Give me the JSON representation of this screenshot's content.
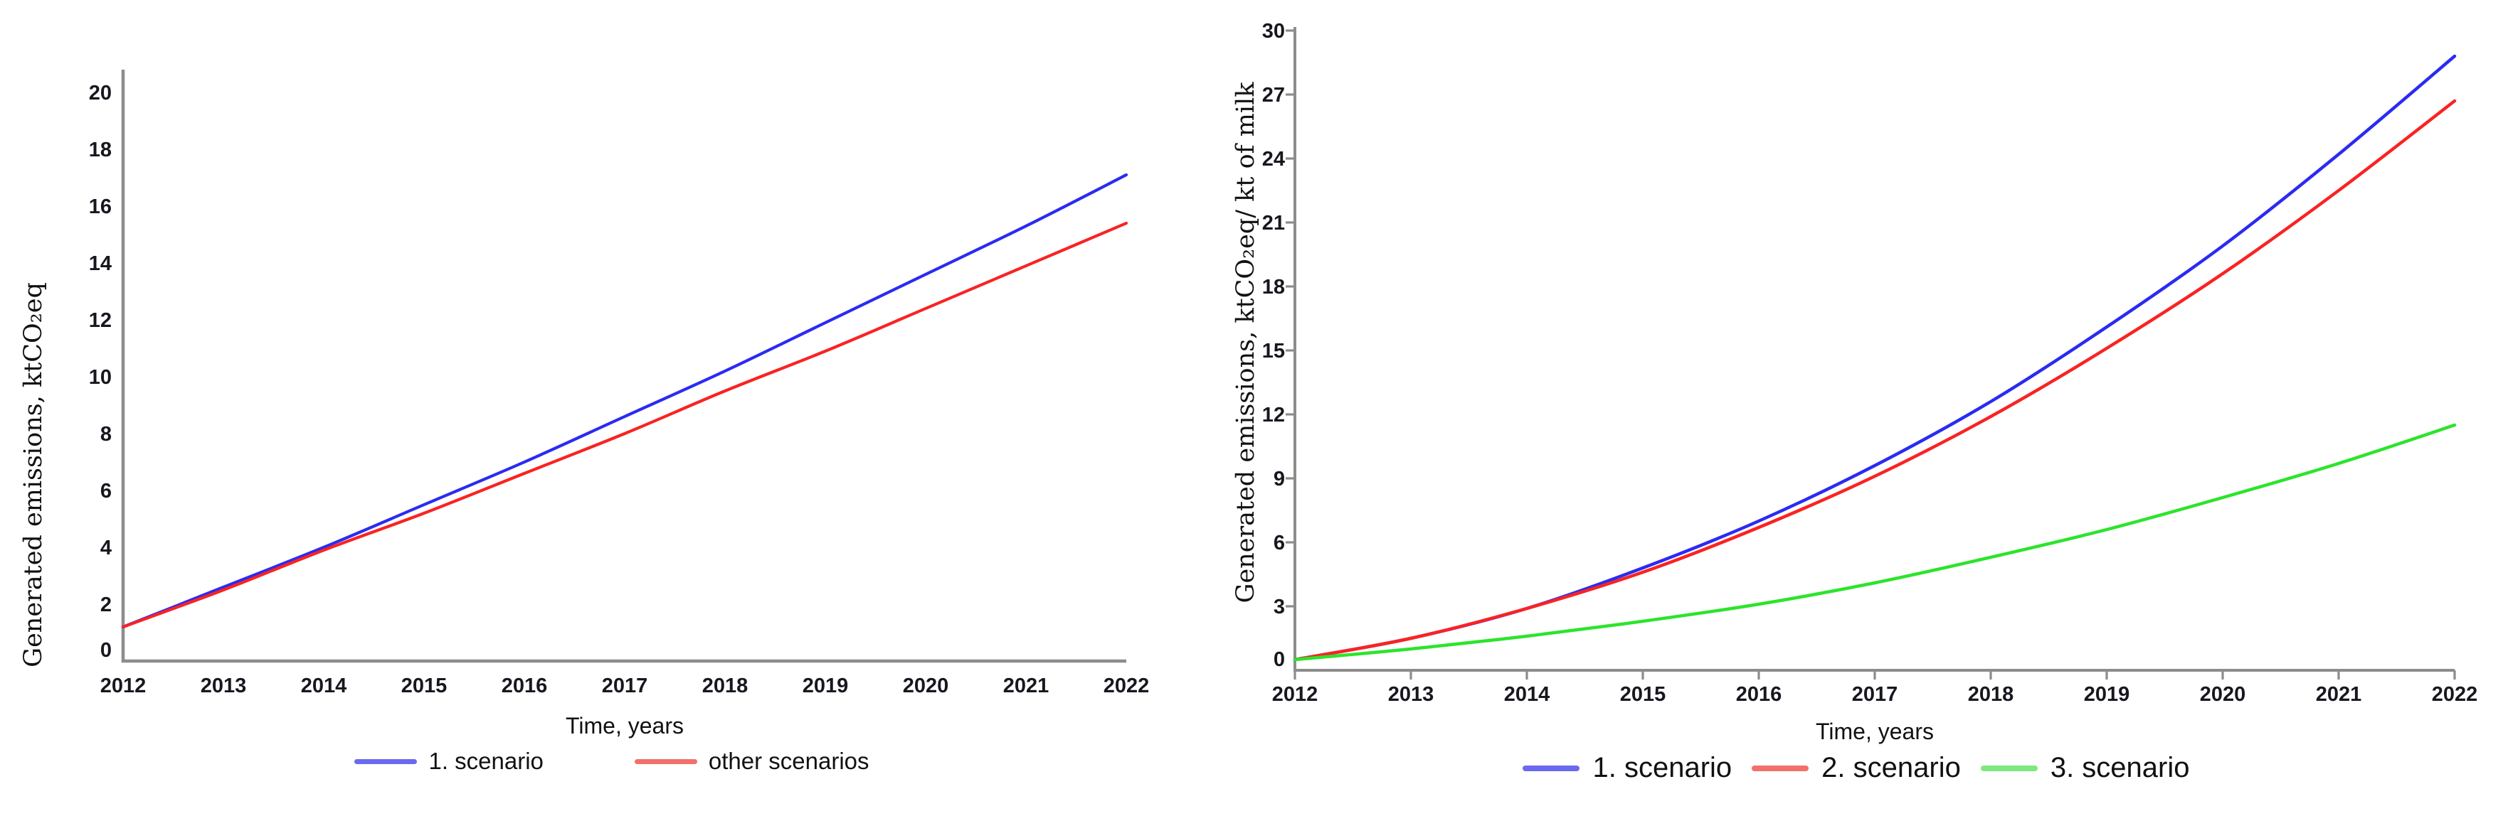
{
  "chart_data": [
    {
      "type": "line",
      "title": "",
      "xlabel": "Time, years",
      "ylabel": "Generated emissions, ktCO₂eq",
      "x": [
        2012,
        2013,
        2014,
        2015,
        2016,
        2017,
        2018,
        2019,
        2020,
        2021,
        2022
      ],
      "xtick_labels": [
        "2012",
        "2013",
        "2014",
        "2015",
        "2016",
        "2017",
        "2018",
        "2019",
        "2020",
        "2021",
        "2022"
      ],
      "xlim": [
        2012,
        2022
      ],
      "ylim": [
        0,
        20
      ],
      "ytick_step": 2,
      "grid": false,
      "legend_position": "bottom-center",
      "axis_color": "#8c8c8c",
      "tick_label_color": "#17171f",
      "series": [
        {
          "name": "1. scenario",
          "color": "#2b2bf2",
          "legend_color": "#6a6af0",
          "values": [
            1.2,
            2.6,
            4.0,
            5.5,
            7.0,
            8.6,
            10.2,
            11.9,
            13.6,
            15.3,
            17.1
          ]
        },
        {
          "name": "other scenarios",
          "color": "#f92323",
          "legend_color": "#f2706a",
          "values": [
            1.2,
            2.5,
            3.9,
            5.2,
            6.6,
            8.0,
            9.5,
            10.9,
            12.4,
            13.9,
            15.4
          ]
        }
      ]
    },
    {
      "type": "line",
      "title": "",
      "xlabel": "Time, years",
      "ylabel": "Generated emissions, ktCO₂eq/ kt of milk",
      "x": [
        2012,
        2013,
        2014,
        2015,
        2016,
        2017,
        2018,
        2019,
        2020,
        2021,
        2022
      ],
      "xtick_labels": [
        "2012",
        "2013",
        "2014",
        "2015",
        "2016",
        "2017",
        "2018",
        "2019",
        "2020",
        "2021",
        "2022"
      ],
      "xlim": [
        2012,
        2022
      ],
      "ylim": [
        0,
        30
      ],
      "ytick_step": 3,
      "grid": false,
      "legend_position": "bottom-center",
      "axis_color": "#8c8c8c",
      "tick_label_color": "#17171f",
      "series": [
        {
          "name": "1. scenario",
          "color": "#2b2bf2",
          "legend_color": "#6a6af0",
          "values": [
            0.5,
            1.5,
            2.9,
            4.8,
            7.0,
            9.6,
            12.6,
            16.1,
            19.9,
            24.2,
            28.8
          ]
        },
        {
          "name": "2. scenario",
          "color": "#f92323",
          "legend_color": "#f2706a",
          "values": [
            0.5,
            1.5,
            2.9,
            4.6,
            6.7,
            9.1,
            11.9,
            15.1,
            18.6,
            22.5,
            26.7
          ]
        },
        {
          "name": "3. scenario",
          "color": "#2ce42c",
          "legend_color": "#7de87d",
          "values": [
            0.5,
            1.0,
            1.6,
            2.3,
            3.1,
            4.1,
            5.3,
            6.6,
            8.1,
            9.7,
            11.5
          ]
        }
      ]
    }
  ]
}
